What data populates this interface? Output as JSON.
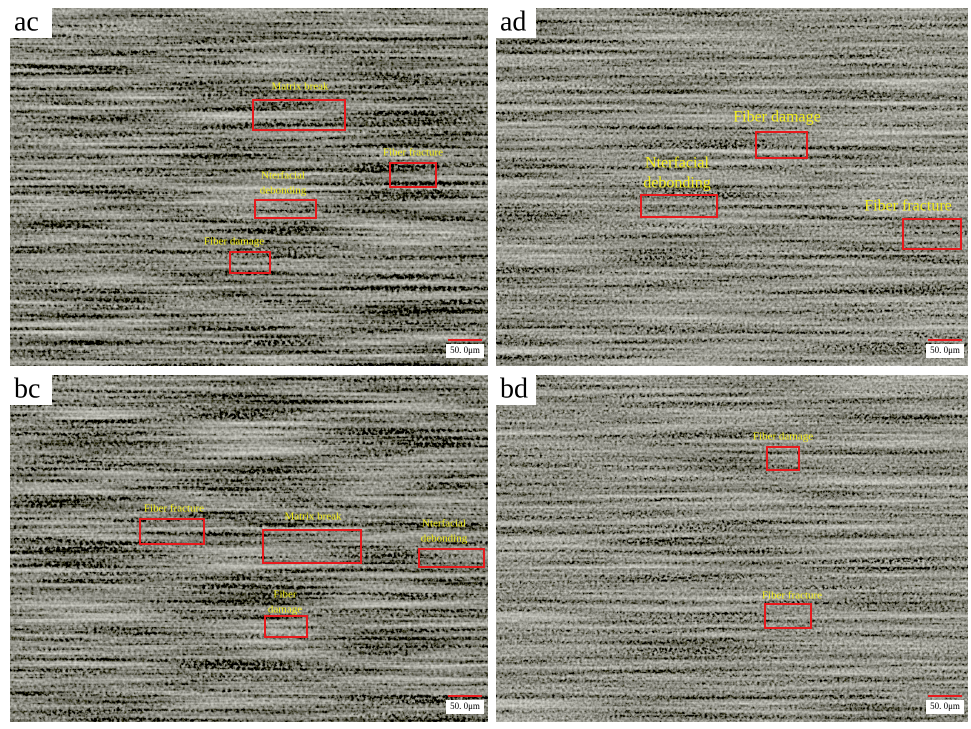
{
  "panels": [
    {
      "label": "ac",
      "scale_bar": "50. 0μm",
      "annotations": [
        {
          "lines": [
            "Matrix break"
          ]
        },
        {
          "lines": [
            "Fiber fracture"
          ]
        },
        {
          "lines": [
            "Nterfacial",
            "debonding"
          ]
        },
        {
          "lines": [
            "Fiber damage"
          ]
        }
      ]
    },
    {
      "label": "ad",
      "scale_bar": "50. 0μm",
      "annotations": [
        {
          "lines": [
            "Fiber damage"
          ]
        },
        {
          "lines": [
            "Nterfacial",
            "debonding"
          ]
        },
        {
          "lines": [
            "Fiber fracture"
          ]
        }
      ]
    },
    {
      "label": "bc",
      "scale_bar": "50. 0μm",
      "annotations": [
        {
          "lines": [
            "Fiber fracture"
          ]
        },
        {
          "lines": [
            "Matrix break"
          ]
        },
        {
          "lines": [
            "Nterfacial",
            "debonding"
          ]
        },
        {
          "lines": [
            "Fiber",
            "damage"
          ]
        }
      ]
    },
    {
      "label": "bd",
      "scale_bar": "50. 0μm",
      "annotations": [
        {
          "lines": [
            "Fiber damage"
          ]
        },
        {
          "lines": [
            "Fiber fracture"
          ]
        }
      ]
    }
  ]
}
